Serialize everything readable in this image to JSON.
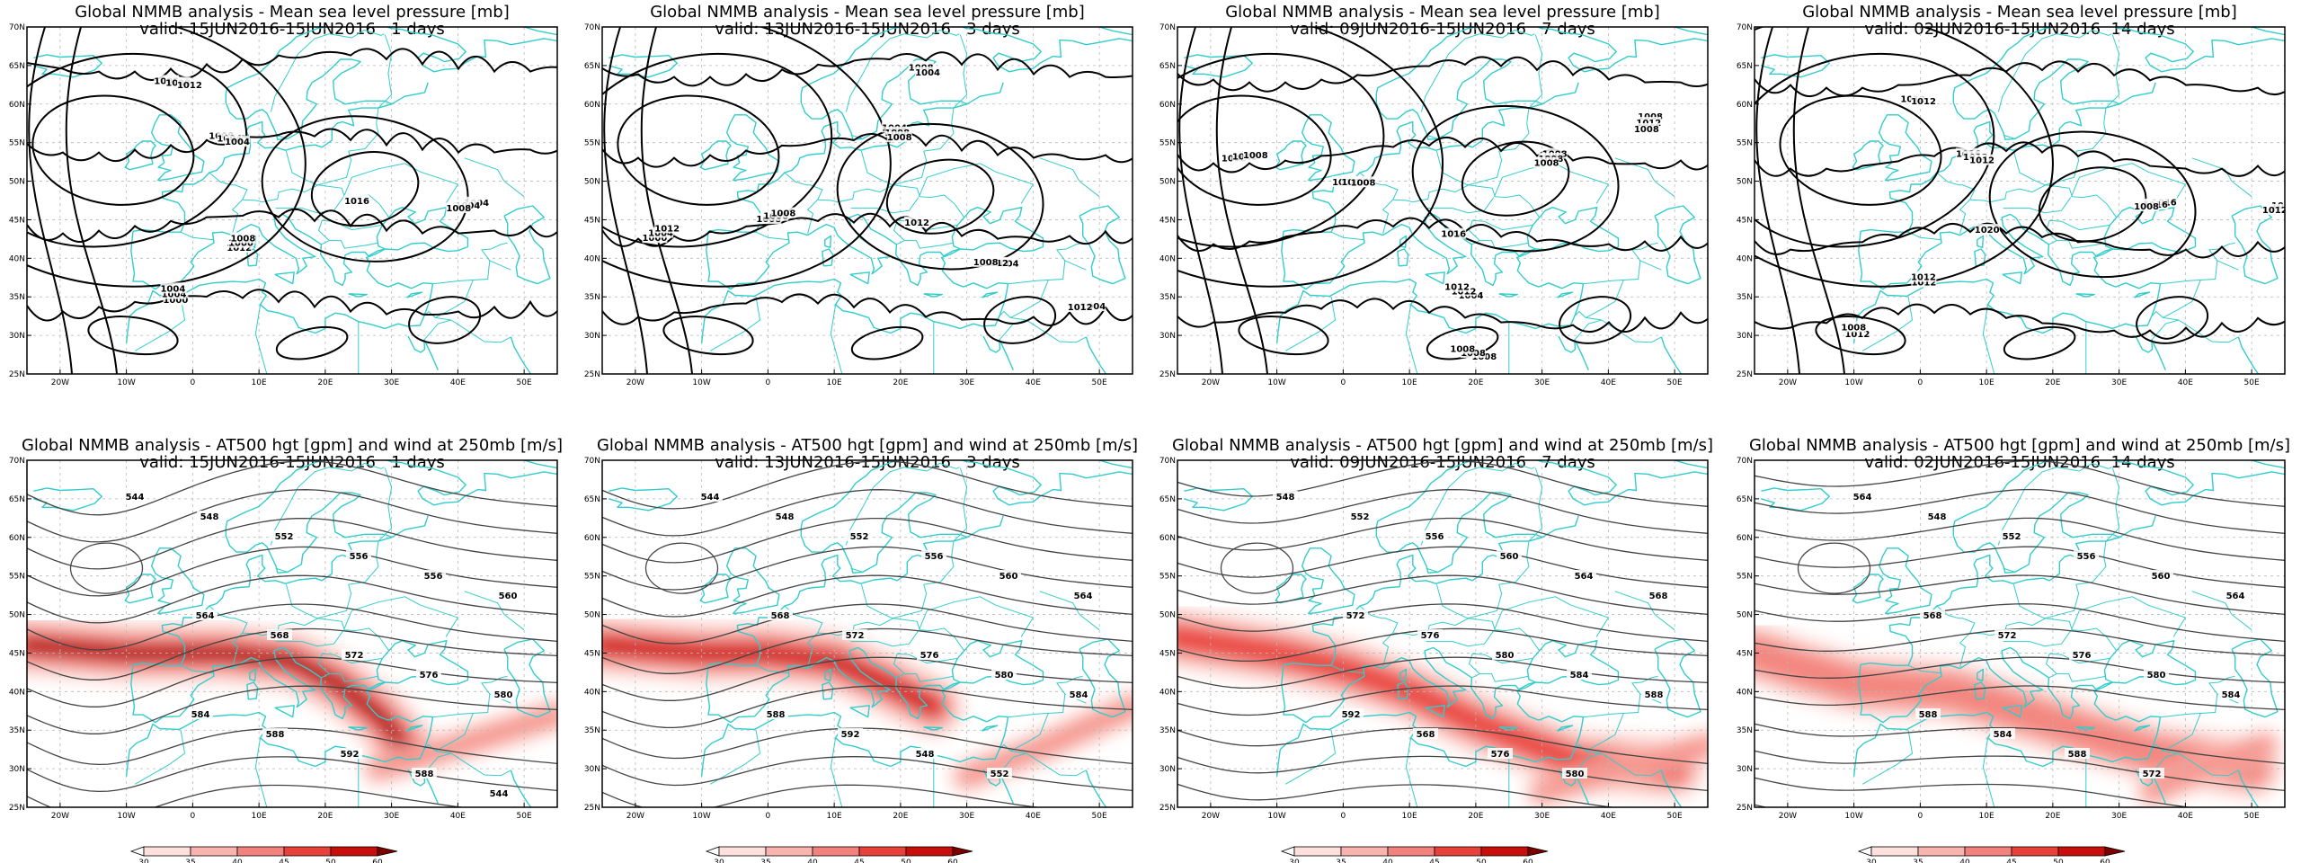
{
  "rows": [
    {
      "product": "Global NMMB analysis - Mean sea level pressure [mb]",
      "kind": "mslp",
      "panels": [
        {
          "valid": "valid: 15JUN2016-15JUN2016   1 days",
          "contour_labels": [
            "1016",
            "1012",
            "1008",
            "1004",
            "1000",
            "1000",
            "1000",
            "1000",
            "1004",
            "1004",
            "1004",
            "1008",
            "1008",
            "1008",
            "1004",
            "1008",
            "1004",
            "1012",
            "1012"
          ]
        },
        {
          "valid": "valid: 13JUN2016-15JUN2016   3 days",
          "contour_labels": [
            "1012",
            "1008",
            "1004",
            "1004",
            "1000",
            "1008",
            "1004",
            "1008",
            "1008",
            "1012",
            "1004",
            "1004",
            "1012",
            "1008",
            "1008",
            "1008",
            "1012"
          ]
        },
        {
          "valid": "valid: 09JUN2016-15JUN2016   7 days",
          "contour_labels": [
            "1016",
            "1012",
            "1008",
            "1004",
            "1008",
            "1008",
            "1008",
            "1004",
            "1008",
            "1012",
            "1012",
            "1012",
            "1008",
            "1008",
            "1008",
            "1012",
            "1008",
            "1008",
            "1008"
          ]
        },
        {
          "valid": "valid: 02JUN2016-15JUN2016  14 days",
          "contour_labels": [
            "1020",
            "1016",
            "1016",
            "1012",
            "1012",
            "1012",
            "1012",
            "1012",
            "1016",
            "1012",
            "1012",
            "1012",
            "1008",
            "1012",
            "1008"
          ]
        }
      ]
    },
    {
      "product": "Global NMMB analysis - AT500 hgt [gpm] and wind at 250mb [m/s]",
      "kind": "z500",
      "panels": [
        {
          "valid": "valid: 15JUN2016-15JUN2016   1 days",
          "contour_labels": [
            "544",
            "548",
            "552",
            "556",
            "556",
            "560",
            "564",
            "568",
            "572",
            "576",
            "580",
            "584",
            "588",
            "592",
            "588",
            "544",
            "548"
          ]
        },
        {
          "valid": "valid: 13JUN2016-15JUN2016   3 days",
          "contour_labels": [
            "544",
            "548",
            "552",
            "556",
            "560",
            "564",
            "568",
            "572",
            "576",
            "580",
            "584",
            "588",
            "592",
            "548",
            "552"
          ]
        },
        {
          "valid": "valid: 09JUN2016-15JUN2016   7 days",
          "contour_labels": [
            "548",
            "552",
            "556",
            "560",
            "564",
            "568",
            "572",
            "576",
            "580",
            "584",
            "588",
            "592",
            "568",
            "576",
            "580"
          ]
        },
        {
          "valid": "valid: 02JUN2016-15JUN2016  14 days",
          "contour_labels": [
            "564",
            "548",
            "552",
            "556",
            "560",
            "564",
            "568",
            "572",
            "576",
            "580",
            "584",
            "588",
            "584",
            "588",
            "572"
          ]
        }
      ]
    }
  ],
  "axes": {
    "lat_labels": [
      "70N",
      "65N",
      "60N",
      "55N",
      "50N",
      "45N",
      "40N",
      "35N",
      "30N",
      "25N"
    ],
    "lon_labels": [
      "20W",
      "10W",
      "0",
      "10E",
      "20E",
      "30E",
      "40E",
      "50E"
    ]
  },
  "colorbar": {
    "labels": [
      "30",
      "35",
      "40",
      "45",
      "50",
      "60"
    ],
    "colors": [
      "#ffffff",
      "#fde0dc",
      "#f9b5ad",
      "#f2827b",
      "#e8403a",
      "#c80d0d",
      "#7a0000"
    ]
  },
  "colors": {
    "coast": "#33cccc",
    "contour_mslp": "#000000",
    "contour_z500": "#444444",
    "grid": "#b8b8b8"
  }
}
